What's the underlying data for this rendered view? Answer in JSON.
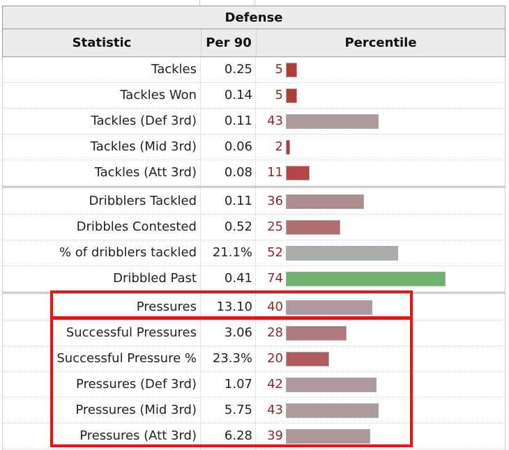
{
  "table": {
    "title": "Defense",
    "columns": {
      "statistic": "Statistic",
      "per90": "Per 90",
      "percentile": "Percentile"
    },
    "rows": [
      {
        "label": "Tackles",
        "per90": "0.25",
        "percentile": 5,
        "bar_color": "#b23a3a"
      },
      {
        "label": "Tackles Won",
        "per90": "0.14",
        "percentile": 5,
        "bar_color": "#b23a3a"
      },
      {
        "label": "Tackles (Def 3rd)",
        "per90": "0.11",
        "percentile": 43,
        "bar_color": "#ad9a9c"
      },
      {
        "label": "Tackles (Mid 3rd)",
        "per90": "0.06",
        "percentile": 2,
        "bar_color": "#b23a3a"
      },
      {
        "label": "Tackles (Att 3rd)",
        "per90": "0.08",
        "percentile": 11,
        "bar_color": "#b44446"
      },
      {
        "label": "Dribblers Tackled",
        "per90": "0.11",
        "percentile": 36,
        "bar_color": "#ae8c8d"
      },
      {
        "label": "Dribbles Contested",
        "per90": "0.52",
        "percentile": 25,
        "bar_color": "#b06e70"
      },
      {
        "label": "% of dribblers tackled",
        "per90": "21.1%",
        "percentile": 52,
        "bar_color": "#a9aeaa"
      },
      {
        "label": "Dribbled Past",
        "per90": "0.41",
        "percentile": 74,
        "bar_color": "#6fb16f"
      },
      {
        "label": "Pressures",
        "per90": "13.10",
        "percentile": 40,
        "bar_color": "#ad9b9e"
      },
      {
        "label": "Successful Pressures",
        "per90": "3.06",
        "percentile": 28,
        "bar_color": "#af7a7d"
      },
      {
        "label": "Successful Pressure %",
        "per90": "23.3%",
        "percentile": 20,
        "bar_color": "#b05b5e"
      },
      {
        "label": "Pressures (Def 3rd)",
        "per90": "1.07",
        "percentile": 42,
        "bar_color": "#ad9a9c"
      },
      {
        "label": "Pressures (Mid 3rd)",
        "per90": "5.75",
        "percentile": 43,
        "bar_color": "#ad9a9c"
      },
      {
        "label": "Pressures (Att 3rd)",
        "per90": "6.28",
        "percentile": 39,
        "bar_color": "#ad979a"
      }
    ]
  },
  "highlight_color": "#ee1111"
}
